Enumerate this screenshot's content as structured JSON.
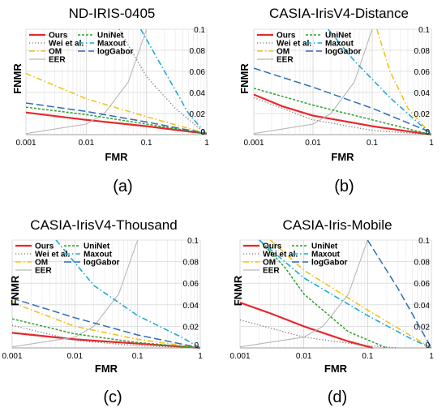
{
  "chart_data": [
    {
      "panel": "a",
      "type": "line",
      "title": "ND-IRIS-0405",
      "caption": "(a)",
      "xlabel": "FMR",
      "ylabel": "FNMR",
      "xscale": "log",
      "xlim": [
        0.001,
        1
      ],
      "ylim": [
        0,
        0.1
      ],
      "x_ticks": [
        "0.001",
        "0.01",
        "0.1",
        "1"
      ],
      "y_ticks": [
        "0",
        "0.02",
        "0.04",
        "0.06",
        "0.08",
        "0.1"
      ],
      "grid": true,
      "legend": "top-left",
      "series": [
        {
          "name": "Ours",
          "color": "#e8262a",
          "dash": "solid",
          "width": 2.2,
          "x": [
            0.001,
            0.01,
            0.1,
            0.5,
            1
          ],
          "y": [
            0.021,
            0.014,
            0.008,
            0.003,
            0.001
          ]
        },
        {
          "name": "Wei et al.",
          "color": "#777777",
          "dash": "dot",
          "width": 1.3,
          "x": [
            0.035,
            0.1,
            0.3,
            1
          ],
          "y": [
            0.1,
            0.055,
            0.025,
            0.0
          ]
        },
        {
          "name": "OM",
          "color": "#f0c419",
          "dash": "dashdot",
          "width": 1.6,
          "x": [
            0.001,
            0.01,
            0.1,
            1
          ],
          "y": [
            0.058,
            0.034,
            0.017,
            0.001
          ]
        },
        {
          "name": "EER",
          "color": "#b7b7b7",
          "dash": "solid",
          "width": 1.1,
          "x": [
            0.001,
            0.01,
            0.02,
            0.05,
            0.1
          ],
          "y": [
            0.001,
            0.01,
            0.02,
            0.05,
            0.1
          ]
        },
        {
          "name": "UniNet",
          "color": "#2ca02c",
          "dash": "dash-fine",
          "width": 1.5,
          "x": [
            0.001,
            0.01,
            0.1,
            1
          ],
          "y": [
            0.026,
            0.019,
            0.01,
            0.001
          ]
        },
        {
          "name": "Maxout",
          "color": "#1fa9d6",
          "dash": "dashdot",
          "width": 1.6,
          "x": [
            0.08,
            0.2,
            0.5,
            1
          ],
          "y": [
            0.1,
            0.06,
            0.02,
            0.0
          ]
        },
        {
          "name": "logGabor",
          "color": "#2f6db3",
          "dash": "dash-long",
          "width": 1.5,
          "x": [
            0.001,
            0.01,
            0.1,
            1
          ],
          "y": [
            0.03,
            0.022,
            0.012,
            0.001
          ]
        }
      ]
    },
    {
      "panel": "b",
      "type": "line",
      "title": "CASIA-IrisV4-Distance",
      "caption": "(b)",
      "xlabel": "FMR",
      "ylabel": "FNMR",
      "xscale": "log",
      "xlim": [
        0.001,
        1
      ],
      "ylim": [
        0,
        0.1
      ],
      "x_ticks": [
        "0.001",
        "0.01",
        "0.1",
        "1"
      ],
      "y_ticks": [
        "0",
        "0.02",
        "0.04",
        "0.06",
        "0.08",
        "0.1"
      ],
      "grid": true,
      "legend": "top-left",
      "series": [
        {
          "name": "Ours",
          "color": "#e8262a",
          "dash": "solid",
          "width": 2.2,
          "x": [
            0.001,
            0.003,
            0.01,
            0.1,
            1
          ],
          "y": [
            0.038,
            0.027,
            0.018,
            0.008,
            0.0
          ]
        },
        {
          "name": "Wei et al.",
          "color": "#777777",
          "dash": "dot",
          "width": 1.3,
          "x": [
            0.001,
            0.01,
            0.1,
            1
          ],
          "y": [
            0.035,
            0.014,
            0.004,
            0.0
          ]
        },
        {
          "name": "OM",
          "color": "#f0c419",
          "dash": "dashdot",
          "width": 1.6,
          "x": [
            0.12,
            0.2,
            0.4,
            1
          ],
          "y": [
            0.1,
            0.06,
            0.025,
            0.0
          ]
        },
        {
          "name": "EER",
          "color": "#b7b7b7",
          "dash": "solid",
          "width": 1.1,
          "x": [
            0.001,
            0.01,
            0.02,
            0.05,
            0.1
          ],
          "y": [
            0.001,
            0.01,
            0.02,
            0.05,
            0.1
          ]
        },
        {
          "name": "UniNet",
          "color": "#2ca02c",
          "dash": "dash-fine",
          "width": 1.5,
          "x": [
            0.001,
            0.01,
            0.1,
            1
          ],
          "y": [
            0.044,
            0.028,
            0.014,
            0.0
          ]
        },
        {
          "name": "Maxout",
          "color": "#1fa9d6",
          "dash": "dashdot",
          "width": 1.6,
          "x": [
            0.018,
            0.05,
            0.2,
            1
          ],
          "y": [
            0.1,
            0.07,
            0.035,
            0.0
          ]
        },
        {
          "name": "logGabor",
          "color": "#2f6db3",
          "dash": "dash-long",
          "width": 1.5,
          "x": [
            0.001,
            0.01,
            0.1,
            1
          ],
          "y": [
            0.063,
            0.045,
            0.025,
            0.002
          ]
        }
      ]
    },
    {
      "panel": "c",
      "type": "line",
      "title": "CASIA-IrisV4-Thousand",
      "caption": "(c)",
      "xlabel": "FMR",
      "ylabel": "FNMR",
      "xscale": "log",
      "xlim": [
        0.001,
        1
      ],
      "ylim": [
        0,
        0.1
      ],
      "x_ticks": [
        "0.001",
        "0.01",
        "0.1",
        "1"
      ],
      "y_ticks": [
        "0",
        "0.02",
        "0.04",
        "0.06",
        "0.08",
        "0.1"
      ],
      "grid": true,
      "legend": "top-left",
      "series": [
        {
          "name": "Ours",
          "color": "#e8262a",
          "dash": "solid",
          "width": 2.2,
          "x": [
            0.001,
            0.01,
            0.1,
            1
          ],
          "y": [
            0.014,
            0.008,
            0.004,
            0.0
          ]
        },
        {
          "name": "Wei et al.",
          "color": "#777777",
          "dash": "dot",
          "width": 1.3,
          "x": [
            0.001,
            0.01,
            0.1,
            1
          ],
          "y": [
            0.021,
            0.007,
            0.002,
            0.0
          ]
        },
        {
          "name": "OM",
          "color": "#f0c419",
          "dash": "dashdot",
          "width": 1.6,
          "x": [
            0.001,
            0.01,
            0.1,
            1
          ],
          "y": [
            0.042,
            0.02,
            0.008,
            0.0
          ]
        },
        {
          "name": "EER",
          "color": "#b7b7b7",
          "dash": "solid",
          "width": 1.1,
          "x": [
            0.001,
            0.01,
            0.02,
            0.05,
            0.1
          ],
          "y": [
            0.001,
            0.01,
            0.02,
            0.05,
            0.1
          ]
        },
        {
          "name": "UniNet",
          "color": "#2ca02c",
          "dash": "dash-fine",
          "width": 1.5,
          "x": [
            0.001,
            0.01,
            0.1,
            1
          ],
          "y": [
            0.027,
            0.013,
            0.005,
            0.0
          ]
        },
        {
          "name": "Maxout",
          "color": "#1fa9d6",
          "dash": "dashdot",
          "width": 1.6,
          "x": [
            0.005,
            0.02,
            0.1,
            0.5,
            1
          ],
          "y": [
            0.1,
            0.058,
            0.03,
            0.01,
            0.0
          ]
        },
        {
          "name": "logGabor",
          "color": "#2f6db3",
          "dash": "dash-long",
          "width": 1.5,
          "x": [
            0.001,
            0.01,
            0.1,
            1
          ],
          "y": [
            0.046,
            0.028,
            0.012,
            0.0
          ]
        }
      ]
    },
    {
      "panel": "d",
      "type": "line",
      "title": "CASIA-Iris-Mobile",
      "caption": "(d)",
      "xlabel": "FMR",
      "ylabel": "FNMR",
      "xscale": "log",
      "xlim": [
        0.001,
        1
      ],
      "ylim": [
        0,
        0.1
      ],
      "x_ticks": [
        "0.001",
        "0.01",
        "0.1",
        "1"
      ],
      "y_ticks": [
        "0",
        "0.02",
        "0.04",
        "0.06",
        "0.08",
        "0.1"
      ],
      "grid": true,
      "legend": "top-left",
      "series": [
        {
          "name": "Ours",
          "color": "#e8262a",
          "dash": "solid",
          "width": 2.2,
          "x": [
            0.001,
            0.003,
            0.01,
            0.05,
            0.12
          ],
          "y": [
            0.042,
            0.032,
            0.02,
            0.006,
            0.0
          ]
        },
        {
          "name": "Wei et al.",
          "color": "#777777",
          "dash": "dot",
          "width": 1.3,
          "x": [
            0.001,
            0.01,
            0.1,
            0.3
          ],
          "y": [
            0.026,
            0.01,
            0.002,
            0.0
          ]
        },
        {
          "name": "OM",
          "color": "#f0c419",
          "dash": "dashdot",
          "width": 1.6,
          "x": [
            0.003,
            0.01,
            0.1,
            1
          ],
          "y": [
            0.1,
            0.072,
            0.035,
            0.0
          ]
        },
        {
          "name": "EER",
          "color": "#b7b7b7",
          "dash": "solid",
          "width": 1.1,
          "x": [
            0.001,
            0.01,
            0.02,
            0.05,
            0.1
          ],
          "y": [
            0.001,
            0.01,
            0.02,
            0.05,
            0.1
          ]
        },
        {
          "name": "UniNet",
          "color": "#2ca02c",
          "dash": "dash-fine",
          "width": 1.5,
          "x": [
            0.002,
            0.005,
            0.01,
            0.05,
            0.2
          ],
          "y": [
            0.1,
            0.075,
            0.05,
            0.015,
            0.0
          ]
        },
        {
          "name": "Maxout",
          "color": "#1fa9d6",
          "dash": "dashdot",
          "width": 1.6,
          "x": [
            0.002,
            0.01,
            0.1,
            0.5,
            1
          ],
          "y": [
            0.1,
            0.065,
            0.03,
            0.008,
            0.0
          ]
        },
        {
          "name": "logGabor",
          "color": "#2f6db3",
          "dash": "dash-long",
          "width": 1.5,
          "x": [
            0.1,
            0.3,
            1
          ],
          "y": [
            0.1,
            0.055,
            0.0
          ]
        }
      ]
    }
  ]
}
